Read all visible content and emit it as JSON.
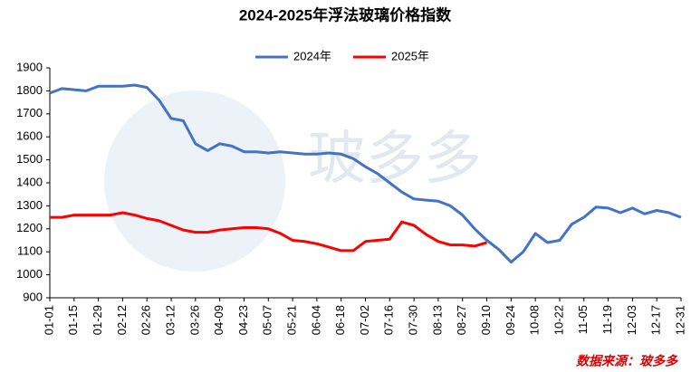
{
  "chart_data": {
    "type": "line",
    "title": "2024-2025年浮法玻璃价格指数",
    "categories": [
      "01-01",
      null,
      "01-15",
      null,
      "01-29",
      null,
      "02-12",
      null,
      "02-26",
      null,
      "03-12",
      null,
      "03-26",
      null,
      "04-09",
      null,
      "04-23",
      null,
      "05-07",
      null,
      "05-21",
      null,
      "06-04",
      null,
      "06-18",
      null,
      "07-02",
      null,
      "07-16",
      null,
      "07-30",
      null,
      "08-13",
      null,
      "08-27",
      null,
      "09-10",
      null,
      "09-24",
      null,
      "10-08",
      null,
      "10-22",
      null,
      "11-05",
      null,
      "11-19",
      null,
      "12-03",
      null,
      "12-17",
      null,
      "12-31"
    ],
    "series": [
      {
        "name": "2024年",
        "color": "#4472c4",
        "values": [
          1790,
          1810,
          1805,
          1800,
          1820,
          1820,
          1820,
          1825,
          1815,
          1760,
          1680,
          1670,
          1570,
          1540,
          1570,
          1560,
          1535,
          1535,
          1530,
          1535,
          1530,
          1525,
          1525,
          1530,
          1525,
          1505,
          1470,
          1440,
          1400,
          1360,
          1330,
          1325,
          1320,
          1300,
          1260,
          1200,
          1150,
          1110,
          1055,
          1100,
          1180,
          1140,
          1150,
          1220,
          1250,
          1295,
          1290,
          1270,
          1290,
          1265,
          1280,
          1270,
          1250
        ]
      },
      {
        "name": "2025年",
        "color": "#ff0000",
        "values": [
          1250,
          1250,
          1260,
          1260,
          1260,
          1260,
          1270,
          1260,
          1245,
          1235,
          1215,
          1195,
          1185,
          1185,
          1195,
          1200,
          1205,
          1205,
          1200,
          1180,
          1150,
          1145,
          1135,
          1120,
          1105,
          1105,
          1145,
          1150,
          1155,
          1230,
          1215,
          1175,
          1145,
          1130,
          1130,
          1125,
          1140,
          null,
          null,
          null,
          null,
          null,
          null,
          null,
          null,
          null,
          null,
          null,
          null,
          null,
          null,
          null,
          null
        ]
      }
    ],
    "ylim": [
      900,
      1900
    ],
    "yticks": [
      900,
      1000,
      1100,
      1200,
      1300,
      1400,
      1500,
      1600,
      1700,
      1800,
      1900
    ],
    "grid": false,
    "legend": "top",
    "watermark": "玻多多",
    "source": "数据来源：玻多多"
  }
}
